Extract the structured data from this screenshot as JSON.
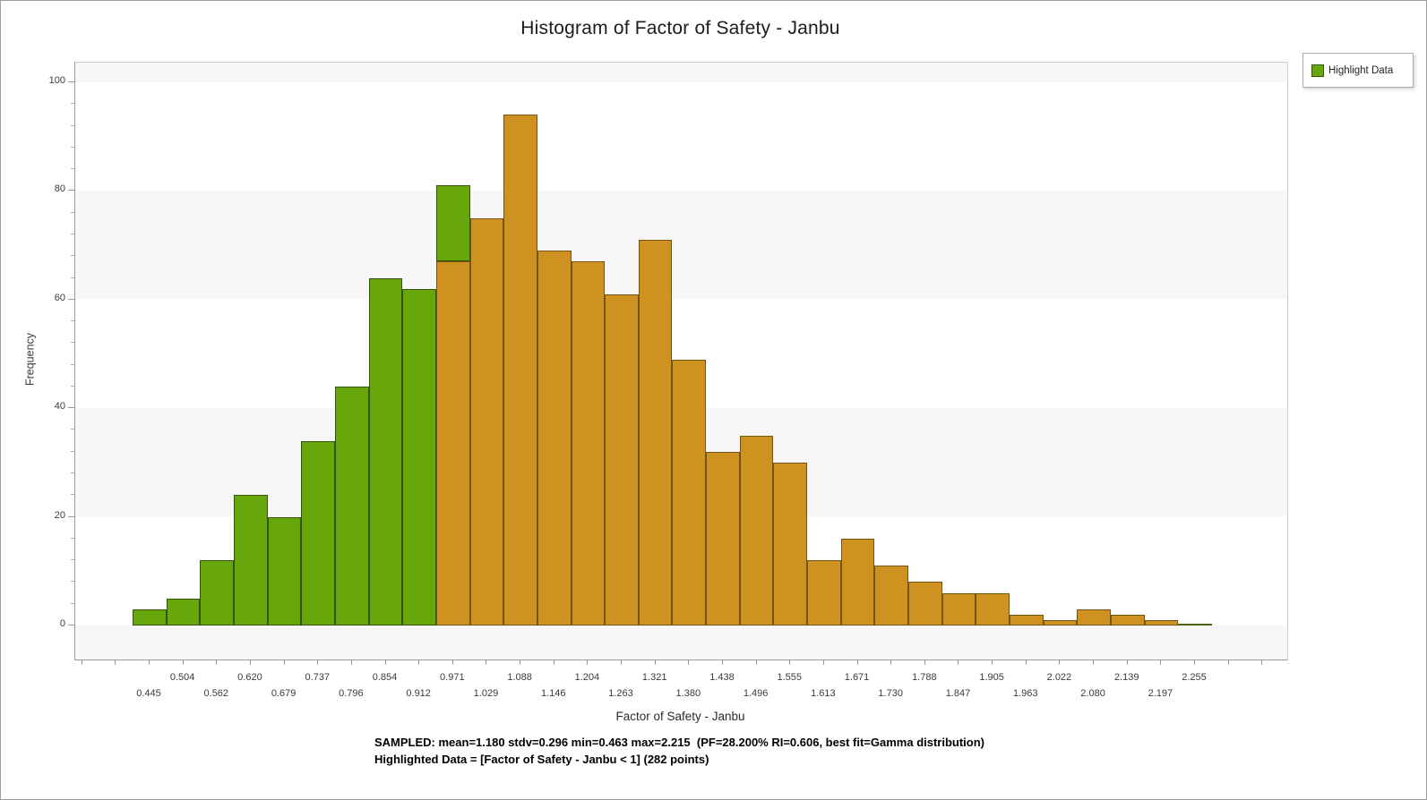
{
  "window": {
    "title": "Histogram of Factor of Safety - Janbu"
  },
  "legend": {
    "label": "Highlight Data",
    "swatch_color": "#68a70c"
  },
  "y_axis": {
    "label": "Frequency",
    "ticks": [
      0,
      20,
      40,
      60,
      80,
      100
    ]
  },
  "x_axis": {
    "label": "Factor of Safety - Janbu",
    "tick_row_upper": [
      "0.504",
      "0.620",
      "0.737",
      "0.854",
      "0.971",
      "1.088",
      "1.204",
      "1.321",
      "1.438",
      "1.555",
      "1.671",
      "1.788",
      "1.905",
      "2.022",
      "2.139",
      "2.255"
    ],
    "tick_row_lower": [
      "0.445",
      "0.562",
      "0.679",
      "0.796",
      "0.912",
      "1.029",
      "1.146",
      "1.263",
      "1.380",
      "1.496",
      "1.613",
      "1.730",
      "1.847",
      "1.963",
      "2.080",
      "2.197"
    ]
  },
  "annotation": {
    "line1": "SAMPLED: mean=1.180 stdv=0.296 min=0.463 max=2.215  (PF=28.200% RI=0.606, best fit=Gamma distribution)",
    "line2": "Highlighted Data = [Factor of Safety - Janbu < 1] (282 points)"
  },
  "chart_data": {
    "type": "bar",
    "subtype": "histogram",
    "title": "Histogram of Factor of Safety - Janbu",
    "xlabel": "Factor of Safety - Janbu",
    "ylabel": "Frequency",
    "ylim": [
      0,
      100
    ],
    "legend_position": "top-right-outside",
    "grid": "horizontal-bands",
    "band_color": "#f7f7f7",
    "bin_centers": [
      0.445,
      0.504,
      0.562,
      0.62,
      0.679,
      0.737,
      0.796,
      0.854,
      0.912,
      0.971,
      1.029,
      1.088,
      1.146,
      1.204,
      1.263,
      1.321,
      1.38,
      1.438,
      1.496,
      1.555,
      1.613,
      1.671,
      1.73,
      1.788,
      1.847,
      1.905,
      1.963,
      2.022,
      2.08,
      2.139,
      2.197,
      2.255
    ],
    "bin_totals": [
      3,
      5,
      12,
      24,
      20,
      34,
      44,
      64,
      62,
      81,
      75,
      94,
      69,
      67,
      61,
      71,
      49,
      32,
      35,
      30,
      12,
      16,
      11,
      8,
      6,
      6,
      2,
      1,
      3,
      2,
      1,
      0
    ],
    "stacked": true,
    "series": [
      {
        "name": "Data",
        "color": "#cf9221",
        "border_color": "#72560f",
        "values": [
          0,
          0,
          0,
          0,
          0,
          0,
          0,
          0,
          0,
          67,
          75,
          94,
          69,
          67,
          61,
          71,
          49,
          32,
          35,
          30,
          12,
          16,
          11,
          8,
          6,
          6,
          2,
          1,
          3,
          2,
          1,
          0
        ]
      },
      {
        "name": "Highlight Data",
        "color": "#68a70c",
        "border_color": "#33540a",
        "values": [
          3,
          5,
          12,
          24,
          20,
          34,
          44,
          64,
          62,
          14,
          0,
          0,
          0,
          0,
          0,
          0,
          0,
          0,
          0,
          0,
          0,
          0,
          0,
          0,
          0,
          0,
          0,
          0,
          0,
          0,
          0,
          0
        ]
      }
    ],
    "sampled_stats": {
      "mean": 1.18,
      "stdv": 0.296,
      "min": 0.463,
      "max": 2.215,
      "pf_percent": 28.2,
      "ri": 0.606,
      "best_fit": "Gamma distribution"
    },
    "highlighted_points": 282,
    "highlight_condition": "Factor of Safety - Janbu < 1"
  }
}
